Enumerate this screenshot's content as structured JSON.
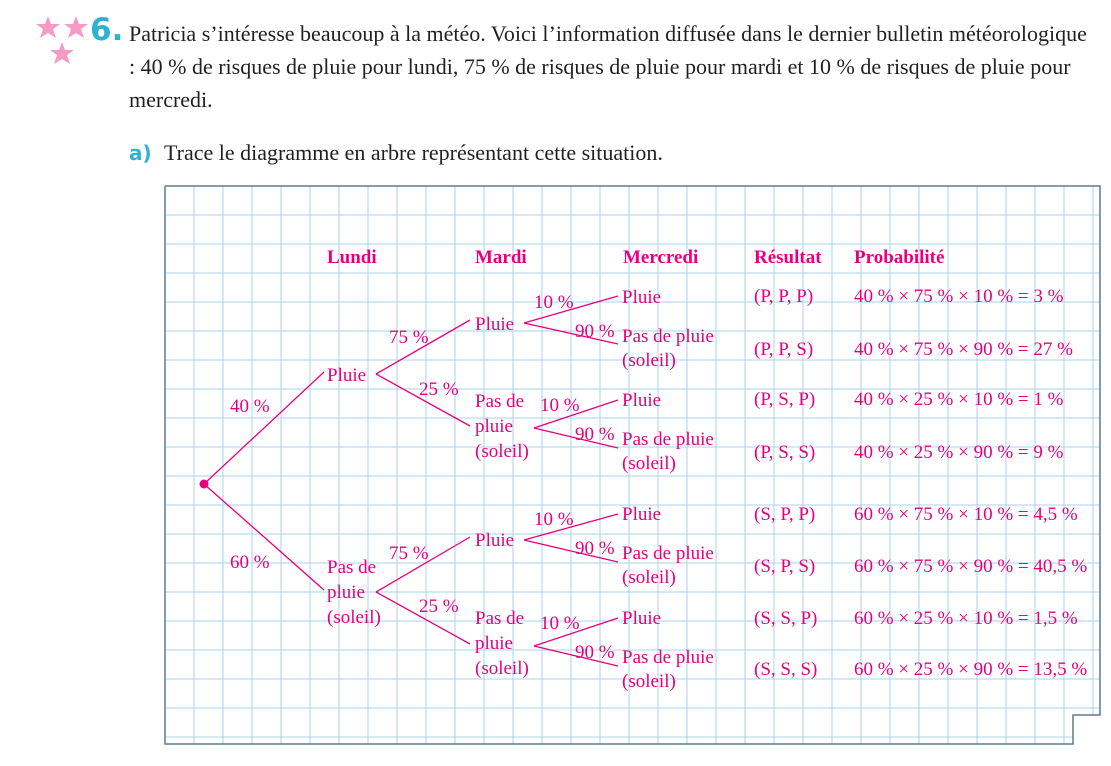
{
  "exercise": {
    "number": "6.",
    "statement": "Patricia s’intéresse beaucoup à la météo. Voici l’information diffusée dans le dernier bulletin météorologique : 40 % de risques de pluie pour lundi, 75 % de risques de pluie pour mardi et 10 % de risques de pluie pour mercredi.",
    "question_label": "a)",
    "question_text": "Trace le diagramme en arbre représentant cette situation."
  },
  "colors": {
    "accent": "#e6007e",
    "number": "#2cb3d1",
    "star": "#f49ac5",
    "grid": "#a9d2ee",
    "text": "#231f20"
  },
  "headers": {
    "lundi": "Lundi",
    "mardi": "Mardi",
    "mercredi": "Mercredi",
    "resultat": "Résultat",
    "probabilite": "Probabilité"
  },
  "tree": {
    "monday": {
      "rain": {
        "prob": "40 %",
        "label": [
          "Pluie"
        ]
      },
      "sun": {
        "prob": "60 %",
        "label": [
          "Pas de",
          "pluie",
          "(soleil)"
        ]
      }
    },
    "tuesday": [
      {
        "prob": "75 %",
        "label": [
          "Pluie"
        ]
      },
      {
        "prob": "25 %",
        "label": [
          "Pas de",
          "pluie",
          "(soleil)"
        ]
      },
      {
        "prob": "75 %",
        "label": [
          "Pluie"
        ]
      },
      {
        "prob": "25 %",
        "label": [
          "Pas de",
          "pluie",
          "(soleil)"
        ]
      }
    ],
    "wednesday_rain": {
      "prob": "10 %",
      "label": [
        "Pluie"
      ]
    },
    "wednesday_sun": {
      "prob": "90 %",
      "label": [
        "Pas de pluie",
        "(soleil)"
      ]
    }
  },
  "outcomes": [
    {
      "result": "(P, P, P)",
      "probability": "40 % × 75 % × 10 % = 3 %"
    },
    {
      "result": "(P, P, S)",
      "probability": "40 % × 75 % × 90 % = 27 %"
    },
    {
      "result": "(P, S, P)",
      "probability": "40 % × 25 % × 10 % = 1 %"
    },
    {
      "result": "(P, S, S)",
      "probability": "40 % × 25 % × 90 % = 9 %"
    },
    {
      "result": "(S, P, P)",
      "probability": "60 % × 75 % × 10 % = 4,5 %"
    },
    {
      "result": "(S, P, S)",
      "probability": "60 % × 75 % × 90 % = 40,5 %"
    },
    {
      "result": "(S, S, P)",
      "probability": "60 % × 25 % × 10 % = 1,5 %"
    },
    {
      "result": "(S, S, S)",
      "probability": "60 % × 25 % × 90 % = 13,5 %"
    }
  ]
}
